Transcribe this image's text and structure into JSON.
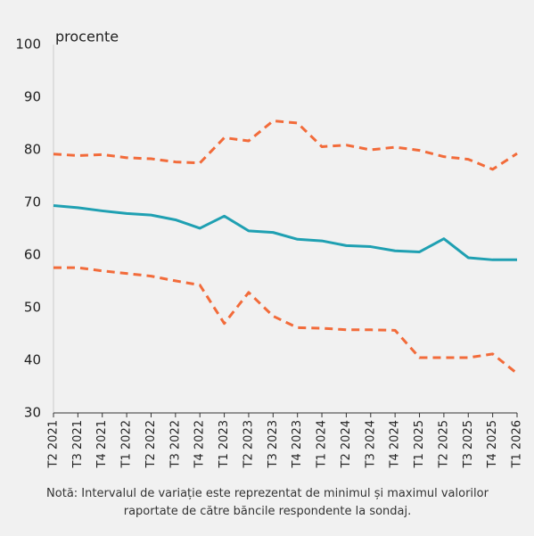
{
  "chart_data": {
    "type": "line",
    "y_unit_label": "procente",
    "categories": [
      "T2 2021",
      "T3 2021",
      "T4 2021",
      "T1 2022",
      "T2 2022",
      "T3 2022",
      "T4 2022",
      "T1 2023",
      "T2 2023",
      "T3 2023",
      "T4 2023",
      "T1 2024",
      "T2 2024",
      "T3 2024",
      "T4 2024",
      "T1 2025",
      "T2 2025",
      "T3 2025",
      "T4 2025",
      "T1 2026"
    ],
    "series": [
      {
        "color": "#f26b3a",
        "style": "dashed",
        "values": [
          79.2,
          78.9,
          79.1,
          78.5,
          78.3,
          77.7,
          77.5,
          82.3,
          81.7,
          85.5,
          85.1,
          80.6,
          80.9,
          80.0,
          80.5,
          79.9,
          78.7,
          78.2,
          76.3,
          79.3
        ]
      },
      {
        "color": "#1fa0b2",
        "style": "solid",
        "values": [
          69.4,
          69.0,
          68.4,
          67.9,
          67.6,
          66.7,
          65.1,
          67.4,
          64.6,
          64.3,
          63.0,
          62.7,
          61.8,
          61.6,
          60.8,
          60.6,
          63.1,
          59.5,
          59.1,
          59.1
        ]
      },
      {
        "color": "#f26b3a",
        "style": "dashed",
        "values": [
          57.6,
          57.6,
          57.0,
          56.5,
          56.0,
          55.1,
          54.3,
          47.0,
          52.9,
          48.4,
          46.2,
          46.1,
          45.8,
          45.8,
          45.7,
          40.5,
          40.5,
          40.5,
          41.2,
          37.5
        ]
      }
    ],
    "ylim": [
      30,
      100
    ],
    "yticks": [
      30,
      40,
      50,
      60,
      70,
      80,
      90,
      100
    ],
    "grid": false,
    "note": "Notă: Intervalul de variație este reprezentat de minimul și maximul valorilor raportate de către băncile respondente la sondaj."
  }
}
